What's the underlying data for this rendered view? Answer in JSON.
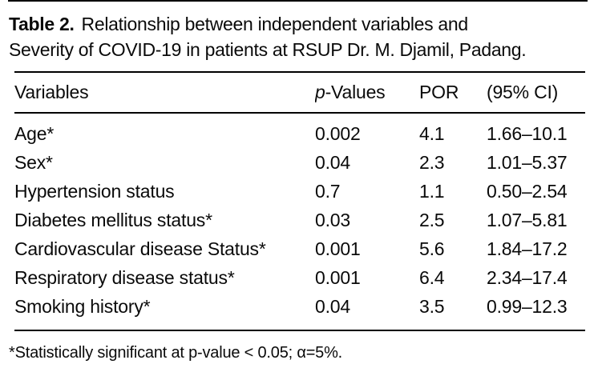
{
  "page": {
    "background_color": "#ffffff",
    "text_color": "#0a0a0a",
    "rule_color": "#000000"
  },
  "title": {
    "label": "Table 2.",
    "line1": "Relationship between independent variables and",
    "line2": "Severity of COVID-19 in patients at RSUP Dr. M. Djamil, Padang."
  },
  "table": {
    "header": {
      "variables": "Variables",
      "p_italic": "p",
      "p_rest": "-Values",
      "por": "POR",
      "ci": "(95% CI)"
    },
    "rows": [
      {
        "variable": "Age*",
        "p": "0.002",
        "por": "4.1",
        "ci": "1.66–10.1"
      },
      {
        "variable": "Sex*",
        "p": "0.04",
        "por": "2.3",
        "ci": "1.01–5.37"
      },
      {
        "variable": "Hypertension status",
        "p": "0.7",
        "por": "1.1",
        "ci": "0.50–2.54"
      },
      {
        "variable": "Diabetes mellitus status*",
        "p": "0.03",
        "por": "2.5",
        "ci": "1.07–5.81"
      },
      {
        "variable": "Cardiovascular disease Status*",
        "p": "0.001",
        "por": "5.6",
        "ci": "1.84–17.2"
      },
      {
        "variable": "Respiratory disease status*",
        "p": "0.001",
        "por": "6.4",
        "ci": "2.34–17.4"
      },
      {
        "variable": "Smoking history*",
        "p": "0.04",
        "por": "3.5",
        "ci": "0.99–12.3"
      }
    ]
  },
  "footnote": "*Statistically significant at p-value < 0.05; α=5%."
}
